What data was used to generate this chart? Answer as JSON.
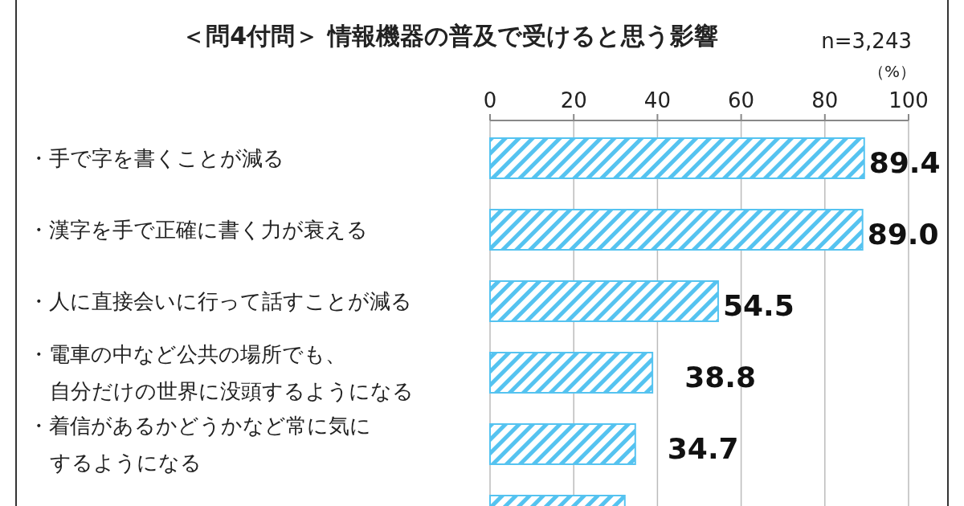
{
  "chart_data": {
    "type": "bar",
    "orientation": "horizontal",
    "title": "＜問4付問＞ 情報機器の普及で受けると思う影響",
    "annotations": [
      "n=3,243",
      "（%）"
    ],
    "categories": [
      "・手で字を書くことが減る",
      "・漢字を手で正確に書く力が衰える",
      "・人に直接会いに行って話すことが減る",
      "・電車の中など公共の場所でも、自分だけの世界に没頭するようになる",
      "・着信があるかどうかなど常に気にするようになる",
      null
    ],
    "values": [
      89.4,
      89.0,
      54.5,
      38.8,
      34.7,
      32.2
    ],
    "value_labels": [
      "89.4",
      "89.0",
      "54.5",
      "38.8",
      "34.7",
      null
    ],
    "color": "#55c3f0",
    "xlim": [
      0,
      100
    ],
    "xticks": [
      0,
      20,
      40,
      60,
      80,
      100
    ],
    "grid": "x"
  }
}
